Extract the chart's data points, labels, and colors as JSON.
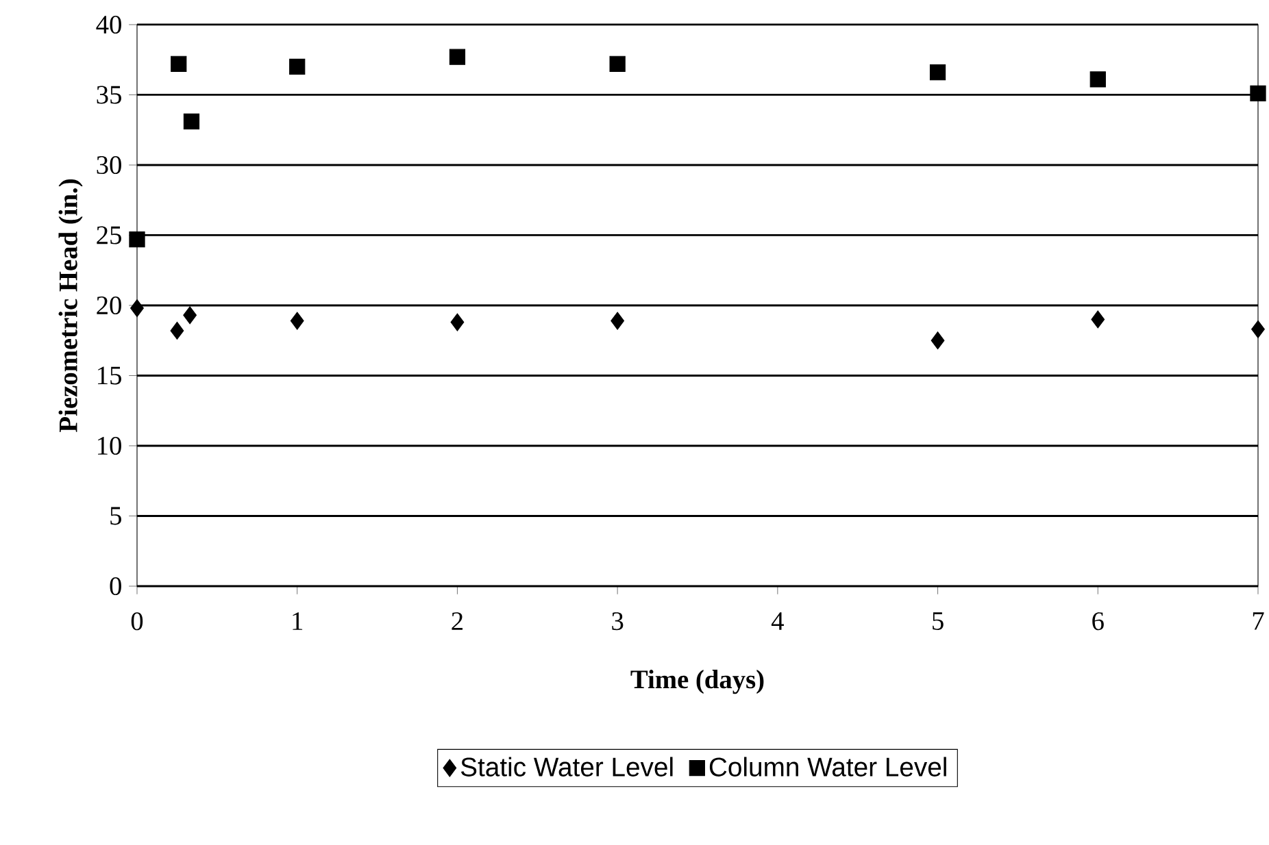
{
  "chart_data": {
    "type": "scatter",
    "xlabel": "Time (days)",
    "ylabel": "Piezometric Head (in.)",
    "xlim": [
      0,
      7
    ],
    "xticks": [
      0,
      1,
      2,
      3,
      4,
      5,
      6,
      7
    ],
    "ylim": [
      0,
      40
    ],
    "yticks": [
      0,
      5,
      10,
      15,
      20,
      25,
      30,
      35,
      40
    ],
    "grid": "y",
    "legend": "bottom",
    "series": [
      {
        "name": "Static Water Level",
        "color": "#000000",
        "marker": "diamond",
        "x": [
          0,
          0.25,
          0.33,
          1,
          2,
          3,
          5,
          6,
          7
        ],
        "values": [
          19.8,
          18.2,
          19.3,
          18.9,
          18.8,
          18.9,
          17.5,
          19.0,
          18.3
        ]
      },
      {
        "name": "Column Water Level",
        "color": "#000000",
        "marker": "square",
        "x": [
          0,
          0.26,
          0.34,
          1,
          2,
          3,
          5,
          6,
          7
        ],
        "values": [
          24.7,
          37.2,
          33.1,
          37.0,
          37.7,
          37.2,
          36.6,
          36.1,
          35.1
        ]
      }
    ]
  }
}
